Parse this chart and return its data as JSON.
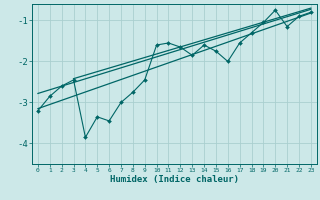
{
  "xlabel": "Humidex (Indice chaleur)",
  "ylabel": "",
  "bg_color": "#cce8e8",
  "grid_color": "#aacfcf",
  "line_color": "#006666",
  "xlim": [
    -0.5,
    23.5
  ],
  "ylim": [
    -4.5,
    -0.6
  ],
  "yticks": [
    -4,
    -3,
    -2,
    -1
  ],
  "xticks": [
    0,
    1,
    2,
    3,
    4,
    5,
    6,
    7,
    8,
    9,
    10,
    11,
    12,
    13,
    14,
    15,
    16,
    17,
    18,
    19,
    20,
    21,
    22,
    23
  ],
  "data_line": [
    [
      0,
      -3.2
    ],
    [
      1,
      -2.85
    ],
    [
      2,
      -2.6
    ],
    [
      3,
      -2.45
    ],
    [
      4,
      -3.85
    ],
    [
      5,
      -3.35
    ],
    [
      6,
      -3.45
    ],
    [
      7,
      -3.0
    ],
    [
      8,
      -2.75
    ],
    [
      9,
      -2.45
    ],
    [
      10,
      -1.6
    ],
    [
      11,
      -1.55
    ],
    [
      12,
      -1.65
    ],
    [
      13,
      -1.85
    ],
    [
      14,
      -1.6
    ],
    [
      15,
      -1.75
    ],
    [
      16,
      -2.0
    ],
    [
      17,
      -1.55
    ],
    [
      18,
      -1.3
    ],
    [
      19,
      -1.05
    ],
    [
      20,
      -0.75
    ],
    [
      21,
      -1.15
    ],
    [
      22,
      -0.9
    ],
    [
      23,
      -0.8
    ]
  ],
  "reg_line1": [
    [
      0,
      -3.15
    ],
    [
      23,
      -0.82
    ]
  ],
  "reg_line2": [
    [
      0,
      -2.78
    ],
    [
      23,
      -0.73
    ]
  ],
  "reg_line3": [
    [
      3,
      -2.42
    ],
    [
      23,
      -0.7
    ]
  ]
}
